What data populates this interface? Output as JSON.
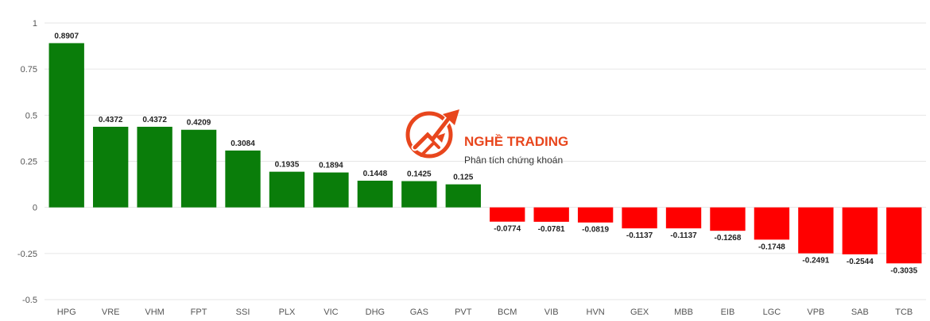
{
  "chart_data": {
    "type": "bar",
    "categories": [
      "HPG",
      "VRE",
      "VHM",
      "FPT",
      "SSI",
      "PLX",
      "VIC",
      "DHG",
      "GAS",
      "PVT",
      "BCM",
      "VIB",
      "HVN",
      "GEX",
      "MBB",
      "EIB",
      "LGC",
      "VPB",
      "SAB",
      "TCB"
    ],
    "values": [
      0.8907,
      0.4372,
      0.4372,
      0.4209,
      0.3084,
      0.1935,
      0.1894,
      0.1448,
      0.1425,
      0.125,
      -0.0774,
      -0.0781,
      -0.0819,
      -0.1137,
      -0.1137,
      -0.1268,
      -0.1748,
      -0.2491,
      -0.2544,
      -0.3035
    ],
    "value_labels": [
      "0.8907",
      "0.4372",
      "0.4372",
      "0.4209",
      "0.3084",
      "0.1935",
      "0.1894",
      "0.1448",
      "0.1425",
      "0.125",
      "-0.0774",
      "-0.0781",
      "-0.0819",
      "-0.1137",
      "-0.1137",
      "-0.1268",
      "-0.1748",
      "-0.2491",
      "-0.2544",
      "-0.3035"
    ],
    "yticks": [
      1,
      0.75,
      0.5,
      0.25,
      0,
      -0.25,
      -0.5
    ],
    "ytick_labels": [
      "1",
      "0.75",
      "0.5",
      "0.25",
      "0",
      "-0.25",
      "-0.5"
    ],
    "ylim": [
      -0.5,
      1
    ],
    "title": "",
    "xlabel": "",
    "ylabel": "",
    "grid": true,
    "legend": "none",
    "colors": {
      "positive": "#0a7d0a",
      "negative": "#ff0000",
      "grid": "#e6e6e6"
    }
  },
  "watermark": {
    "brand": "NGHỀ TRADING",
    "tagline": "Phân tích chứng khoán",
    "color": "#e8461d",
    "icon": "trading-arrows-logo-icon"
  }
}
